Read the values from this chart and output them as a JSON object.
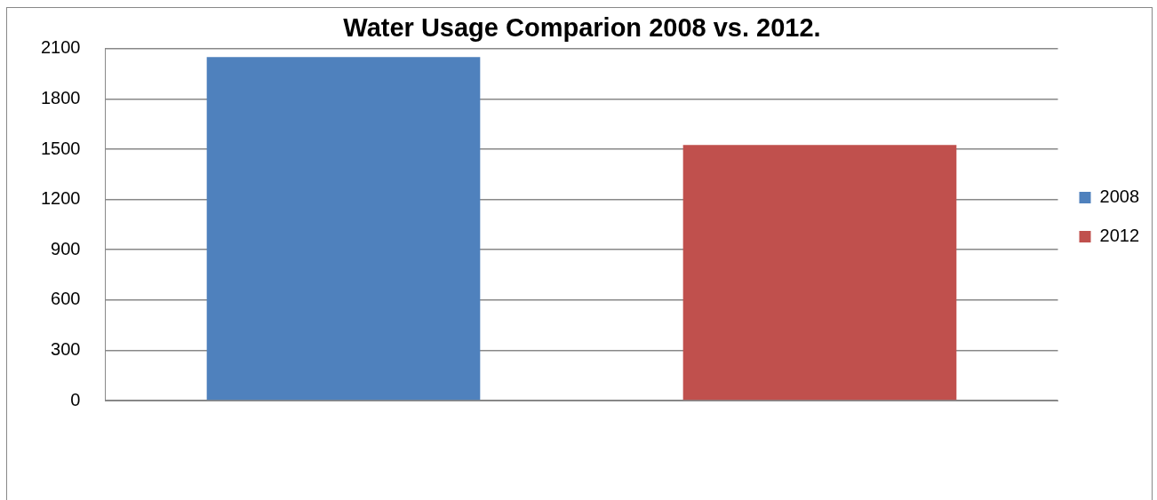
{
  "chart_data": {
    "type": "bar",
    "title": "Water Usage Comparion 2008 vs. 2012.",
    "categories": [
      null
    ],
    "series": [
      {
        "name": "2008",
        "color": "#4f81bd",
        "values": [
          2050
        ]
      },
      {
        "name": "2012",
        "color": "#c0504d",
        "values": [
          1525
        ]
      }
    ],
    "ylim": [
      0,
      2100
    ],
    "yticks": [
      0,
      300,
      600,
      900,
      1200,
      1500,
      1800,
      2100
    ],
    "grid": "y",
    "legend": "right"
  }
}
